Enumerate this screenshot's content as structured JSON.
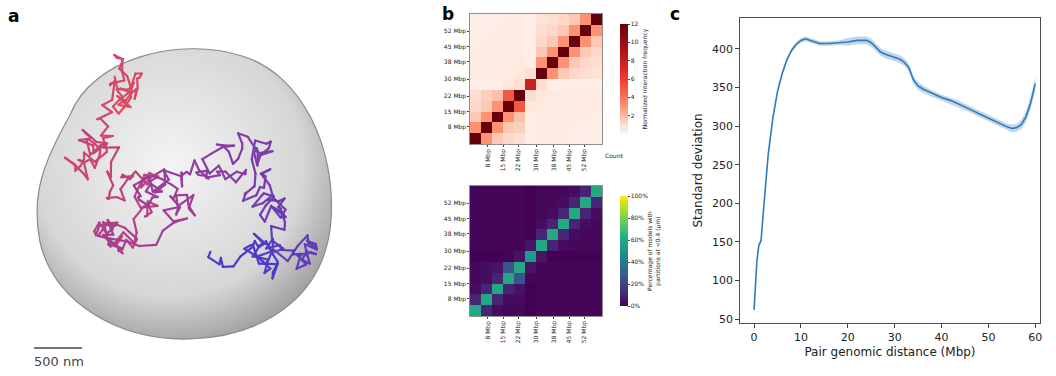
{
  "illustration": {
    "panel": "a",
    "scale_bar_label": "500 nm"
  },
  "chart_data": [
    {
      "type": "heatmap",
      "panel": "b",
      "color": "reds",
      "x": [
        2.5,
        7.5,
        12.5,
        17.5,
        22.5,
        27.5,
        32.5,
        37.5,
        42.5,
        47.5,
        52.5,
        57.5
      ],
      "y": [
        2.5,
        7.5,
        12.5,
        17.5,
        22.5,
        27.5,
        32.5,
        37.5,
        42.5,
        47.5,
        52.5,
        57.5
      ],
      "z": [
        [
          12,
          3,
          1.6,
          1.2,
          1.0,
          0.3,
          0.4,
          0.4,
          0.4,
          0.3,
          0.3,
          0.3
        ],
        [
          3,
          12,
          3,
          1.6,
          1.4,
          0.3,
          0.4,
          0.4,
          0.4,
          0.4,
          0.3,
          0.3
        ],
        [
          1.6,
          3,
          12,
          3,
          1.8,
          0.3,
          0.4,
          0.4,
          0.4,
          0.4,
          0.4,
          0.3
        ],
        [
          1.2,
          1.6,
          3,
          12,
          5,
          0.6,
          0.5,
          0.4,
          0.4,
          0.4,
          0.4,
          0.4
        ],
        [
          1.0,
          1.4,
          1.8,
          5,
          12,
          1,
          0.6,
          0.5,
          0.4,
          0.4,
          0.4,
          0.4
        ],
        [
          0.3,
          0.3,
          0.3,
          0.6,
          1,
          8,
          1,
          0.3,
          0.3,
          0.3,
          0.3,
          0.3
        ],
        [
          0.4,
          0.4,
          0.4,
          0.5,
          0.6,
          1,
          12,
          3,
          1.6,
          1.2,
          1,
          0.8
        ],
        [
          0.4,
          0.4,
          0.4,
          0.4,
          0.5,
          0.3,
          3,
          12,
          3,
          1.6,
          1.2,
          1
        ],
        [
          0.4,
          0.4,
          0.4,
          0.4,
          0.4,
          0.3,
          1.6,
          3,
          12,
          3,
          1.6,
          1.2
        ],
        [
          0.3,
          0.4,
          0.4,
          0.4,
          0.4,
          0.3,
          1.2,
          1.6,
          3,
          12,
          3,
          1.6
        ],
        [
          0.3,
          0.3,
          0.4,
          0.4,
          0.4,
          0.3,
          1,
          1.2,
          1.6,
          3,
          12,
          3
        ],
        [
          0.3,
          0.3,
          0.3,
          0.4,
          0.4,
          0.3,
          0.8,
          1,
          1.2,
          1.6,
          3,
          12
        ]
      ],
      "xlim": [
        0,
        60
      ],
      "ylim": [
        0,
        60
      ],
      "xticks": [
        {
          "value": 8,
          "label": "8 Mbp"
        },
        {
          "value": 15,
          "label": "15 Mbp"
        },
        {
          "value": 22,
          "label": "22 Mbp"
        },
        {
          "value": 30,
          "label": "30 Mbp"
        },
        {
          "value": 38,
          "label": "38 Mbp"
        },
        {
          "value": 45,
          "label": "45 Mbp"
        },
        {
          "value": 52,
          "label": "52 Mbp"
        }
      ],
      "yticks": [
        {
          "value": 8,
          "label": "8 Mbp"
        },
        {
          "value": 15,
          "label": "15 Mbp"
        },
        {
          "value": 22,
          "label": "22 Mbp"
        },
        {
          "value": 30,
          "label": "30 Mbp"
        },
        {
          "value": 38,
          "label": "38 Mbp"
        },
        {
          "value": 45,
          "label": "45 Mbp"
        },
        {
          "value": 52,
          "label": "52 Mbp"
        }
      ],
      "colorbar": {
        "title": "Normalized interaction frequency",
        "label": "Count",
        "zlim": [
          0,
          12
        ],
        "ticks": [
          2,
          4,
          6,
          8,
          10,
          12
        ]
      }
    },
    {
      "type": "heatmap",
      "panel": "b",
      "color": "viridis",
      "x": [
        2.5,
        7.5,
        12.5,
        17.5,
        22.5,
        27.5,
        32.5,
        37.5,
        42.5,
        47.5,
        52.5,
        57.5
      ],
      "y": [
        2.5,
        7.5,
        12.5,
        17.5,
        22.5,
        27.5,
        32.5,
        37.5,
        42.5,
        47.5,
        52.5,
        57.5
      ],
      "z": [
        [
          60,
          10,
          3,
          2,
          2,
          0,
          1,
          1,
          1,
          1,
          1,
          1
        ],
        [
          10,
          60,
          10,
          3,
          3,
          0,
          1,
          1,
          1,
          1,
          1,
          1
        ],
        [
          3,
          10,
          60,
          10,
          5,
          0,
          1,
          1,
          1,
          1,
          1,
          1
        ],
        [
          2,
          3,
          10,
          60,
          25,
          1,
          1,
          1,
          1,
          1,
          1,
          1
        ],
        [
          2,
          3,
          5,
          25,
          60,
          5,
          1,
          1,
          1,
          1,
          1,
          1
        ],
        [
          0,
          0,
          0,
          1,
          5,
          55,
          5,
          0,
          0,
          0,
          0,
          0
        ],
        [
          1,
          1,
          1,
          1,
          1,
          5,
          60,
          10,
          3,
          2,
          2,
          2
        ],
        [
          1,
          1,
          1,
          1,
          1,
          0,
          10,
          60,
          10,
          3,
          2,
          2
        ],
        [
          1,
          1,
          1,
          1,
          1,
          0,
          3,
          10,
          60,
          10,
          3,
          2
        ],
        [
          1,
          1,
          1,
          1,
          1,
          0,
          2,
          3,
          10,
          60,
          10,
          3
        ],
        [
          1,
          1,
          1,
          1,
          1,
          0,
          2,
          2,
          3,
          10,
          60,
          10
        ],
        [
          1,
          1,
          1,
          1,
          1,
          0,
          2,
          2,
          2,
          3,
          10,
          60
        ]
      ],
      "xlim": [
        0,
        60
      ],
      "ylim": [
        0,
        60
      ],
      "xticks": [
        {
          "value": 8,
          "label": "8 Mbp"
        },
        {
          "value": 15,
          "label": "15 Mbp"
        },
        {
          "value": 22,
          "label": "22 Mbp"
        },
        {
          "value": 30,
          "label": "30 Mbp"
        },
        {
          "value": 38,
          "label": "38 Mbp"
        },
        {
          "value": 45,
          "label": "45 Mbp"
        },
        {
          "value": 52,
          "label": "52 Mbp"
        }
      ],
      "yticks": [
        {
          "value": 8,
          "label": "8 Mbp"
        },
        {
          "value": 15,
          "label": "15 Mbp"
        },
        {
          "value": 22,
          "label": "22 Mbp"
        },
        {
          "value": 30,
          "label": "30 Mbp"
        },
        {
          "value": 38,
          "label": "38 Mbp"
        },
        {
          "value": 45,
          "label": "45 Mbp"
        },
        {
          "value": 52,
          "label": "52 Mbp"
        }
      ],
      "colorbar": {
        "title": "Percentage of models with partitions at <0.4 (µm)",
        "zlim": [
          0,
          100
        ],
        "ticks": [
          {
            "value": 0,
            "label": "0%"
          },
          {
            "value": 20,
            "label": "20%"
          },
          {
            "value": 40,
            "label": "40%"
          },
          {
            "value": 60,
            "label": "60%"
          },
          {
            "value": 80,
            "label": "80%"
          },
          {
            "value": 100,
            "label": "100%"
          }
        ]
      }
    },
    {
      "type": "line",
      "panel": "c",
      "color": "#2f7bbd",
      "xlabel": "Pair genomic distance (Mbp)",
      "ylabel": "Standard deviation",
      "x": [
        0,
        0.3,
        0.6,
        1,
        1.5,
        2,
        2.5,
        3,
        4,
        5,
        6,
        7,
        8,
        9,
        10,
        11,
        12,
        14,
        16,
        18,
        20,
        22,
        24,
        25,
        26,
        27,
        28,
        29,
        30,
        31,
        32,
        33,
        34,
        35,
        36,
        38,
        40,
        42,
        44,
        46,
        48,
        50,
        52,
        53,
        54,
        55,
        56,
        57,
        58,
        59,
        60
      ],
      "values": [
        62,
        95,
        125,
        145,
        152,
        190,
        230,
        262,
        310,
        345,
        368,
        386,
        398,
        406,
        411,
        413,
        411,
        407,
        407,
        408,
        409,
        411,
        411,
        408,
        402,
        396,
        393,
        391,
        389,
        387,
        383,
        376,
        360,
        352,
        348,
        342,
        337,
        333,
        328,
        322,
        316,
        310,
        305,
        301,
        299,
        297,
        298,
        302,
        312,
        330,
        355
      ],
      "error": [
        3,
        3,
        3,
        3,
        3,
        3,
        3,
        3,
        3,
        3,
        3,
        3,
        3,
        3,
        3,
        3,
        3,
        3,
        3,
        3,
        5,
        5,
        5,
        5,
        5,
        5,
        5,
        5,
        5,
        5,
        5,
        5,
        5,
        5,
        5,
        4,
        4,
        4,
        4,
        4,
        4,
        4,
        4,
        4,
        4,
        5,
        5,
        6,
        7,
        8,
        9
      ],
      "xlim": [
        -3,
        61
      ],
      "ylim": [
        45,
        440
      ],
      "xticks": [
        0,
        10,
        20,
        30,
        40,
        50,
        60
      ],
      "yticks": [
        50,
        100,
        150,
        200,
        250,
        300,
        350,
        400
      ]
    }
  ]
}
